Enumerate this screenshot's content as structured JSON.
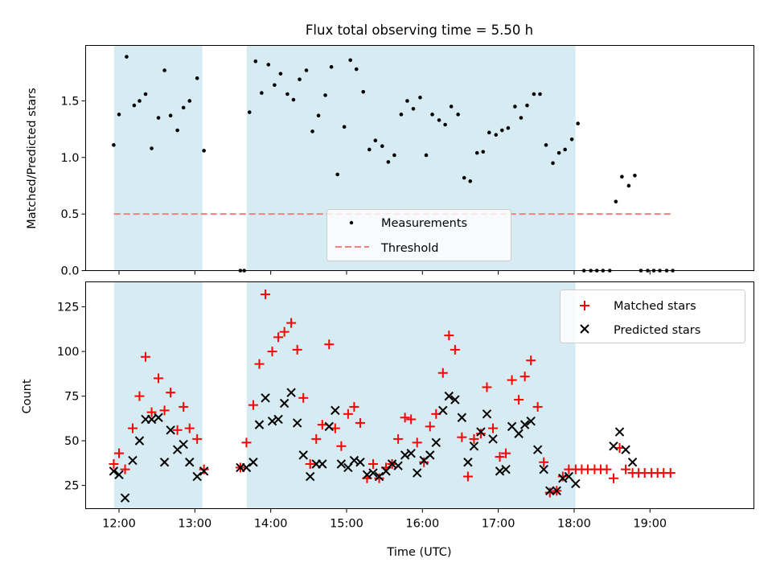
{
  "figure": {
    "title": "Flux total observing time = 5.50 h",
    "xlabel": "Time (UTC)"
  },
  "colors": {
    "band": "#add8e6",
    "measurement": "#000000",
    "threshold": "#f08080",
    "matched": "#ff0000",
    "predicted": "#000000"
  },
  "chart_data": [
    {
      "type": "scatter",
      "ylabel": "Matched/Predicted stars",
      "xlim": [
        11.56,
        20.37
      ],
      "ylim": [
        0,
        1.99
      ],
      "yticks": [
        0.0,
        0.5,
        1.0,
        1.5
      ],
      "ytick_labels": [
        "0.0",
        "0.5",
        "1.0",
        "1.5"
      ],
      "xticks": [
        12,
        13,
        14,
        15,
        16,
        17,
        18,
        19
      ],
      "xtick_labels": [],
      "observing_windows": [
        [
          11.933,
          13.1
        ],
        [
          13.683,
          18.017
        ]
      ],
      "legend": {
        "position": "lower-center",
        "entries": [
          "Measurements",
          "Threshold"
        ]
      },
      "threshold": {
        "name": "Threshold",
        "value": 0.5,
        "x_range": [
          11.933,
          19.3
        ]
      },
      "series": [
        {
          "name": "Measurements",
          "x": [
            11.93,
            12.0,
            12.1,
            12.2,
            12.27,
            12.35,
            12.43,
            12.52,
            12.6,
            12.68,
            12.77,
            12.85,
            12.93,
            13.03,
            13.12,
            13.6,
            13.65,
            13.72,
            13.8,
            13.88,
            13.97,
            14.05,
            14.13,
            14.22,
            14.3,
            14.38,
            14.47,
            14.55,
            14.63,
            14.72,
            14.8,
            14.88,
            14.97,
            15.05,
            15.13,
            15.22,
            15.3,
            15.38,
            15.47,
            15.55,
            15.63,
            15.72,
            15.8,
            15.88,
            15.97,
            16.05,
            16.13,
            16.22,
            16.3,
            16.38,
            16.47,
            16.55,
            16.63,
            16.72,
            16.8,
            16.88,
            16.97,
            17.05,
            17.13,
            17.22,
            17.3,
            17.38,
            17.47,
            17.55,
            17.63,
            17.72,
            17.8,
            17.88,
            17.97,
            18.05,
            18.13,
            18.22,
            18.3,
            18.38,
            18.47,
            18.55,
            18.63,
            18.72,
            18.8,
            18.88,
            18.97,
            19.05,
            19.13,
            19.22,
            19.3
          ],
          "y": [
            1.11,
            1.38,
            1.89,
            1.46,
            1.5,
            1.56,
            1.08,
            1.35,
            1.77,
            1.37,
            1.24,
            1.44,
            1.5,
            1.7,
            1.06,
            0.0,
            0.0,
            1.4,
            1.85,
            1.57,
            1.82,
            1.64,
            1.74,
            1.56,
            1.51,
            1.69,
            1.77,
            1.23,
            1.37,
            1.55,
            1.8,
            0.85,
            1.27,
            1.86,
            1.78,
            1.58,
            1.07,
            1.15,
            1.1,
            0.96,
            1.02,
            1.38,
            1.5,
            1.43,
            1.53,
            1.02,
            1.38,
            1.33,
            1.29,
            1.45,
            1.38,
            0.82,
            0.79,
            1.04,
            1.05,
            1.22,
            1.2,
            1.24,
            1.26,
            1.45,
            1.35,
            1.46,
            1.56,
            1.56,
            1.11,
            0.95,
            1.04,
            1.07,
            1.16,
            1.3,
            0.0,
            0.0,
            0.0,
            0.0,
            0.0,
            0.61,
            0.83,
            0.75,
            0.84,
            0.0,
            0.0,
            0.0,
            0.0,
            0.0,
            0.0
          ]
        }
      ]
    },
    {
      "type": "scatter",
      "ylabel": "Count",
      "xlim": [
        11.56,
        20.37
      ],
      "ylim": [
        12,
        139
      ],
      "yticks": [
        25,
        50,
        75,
        100,
        125
      ],
      "ytick_labels": [
        "25",
        "50",
        "75",
        "100",
        "125"
      ],
      "xticks": [
        12,
        13,
        14,
        15,
        16,
        17,
        18,
        19
      ],
      "xtick_labels": [
        "12:00",
        "13:00",
        "14:00",
        "15:00",
        "16:00",
        "17:00",
        "18:00",
        "19:00"
      ],
      "observing_windows": [
        [
          11.933,
          13.1
        ],
        [
          13.683,
          18.017
        ]
      ],
      "legend": {
        "position": "top-right",
        "entries": [
          "Matched stars",
          "Predicted stars"
        ]
      },
      "series": [
        {
          "name": "Matched stars",
          "marker": "plus",
          "x": [
            11.93,
            12.0,
            12.08,
            12.18,
            12.27,
            12.35,
            12.43,
            12.52,
            12.6,
            12.68,
            12.77,
            12.85,
            12.93,
            13.03,
            13.12,
            13.6,
            13.68,
            13.77,
            13.85,
            13.93,
            14.02,
            14.1,
            14.18,
            14.27,
            14.35,
            14.43,
            14.52,
            14.6,
            14.68,
            14.77,
            14.85,
            14.93,
            15.02,
            15.1,
            15.18,
            15.27,
            15.35,
            15.43,
            15.52,
            15.6,
            15.68,
            15.77,
            15.85,
            15.93,
            16.02,
            16.1,
            16.18,
            16.27,
            16.35,
            16.43,
            16.52,
            16.6,
            16.68,
            16.77,
            16.85,
            16.93,
            17.02,
            17.1,
            17.18,
            17.27,
            17.35,
            17.43,
            17.52,
            17.6,
            17.68,
            17.77,
            17.85,
            17.93,
            18.02,
            18.1,
            18.18,
            18.27,
            18.35,
            18.43,
            18.52,
            18.6,
            18.68,
            18.77,
            18.85,
            18.93,
            19.02,
            19.1,
            19.18,
            19.27
          ],
          "y": [
            37,
            43,
            34,
            57,
            75,
            97,
            66,
            85,
            67,
            77,
            56,
            69,
            57,
            51,
            34,
            35,
            49,
            70,
            93,
            132,
            100,
            108,
            111,
            116,
            101,
            74,
            37,
            51,
            59,
            104,
            57,
            47,
            65,
            69,
            60,
            29,
            37,
            29,
            35,
            37,
            51,
            63,
            62,
            49,
            38,
            58,
            65,
            88,
            109,
            101,
            52,
            30,
            51,
            54,
            80,
            57,
            41,
            43,
            84,
            73,
            86,
            95,
            69,
            38,
            21,
            22,
            30,
            34,
            34,
            34,
            34,
            34,
            34,
            34,
            29,
            46,
            34,
            32,
            32,
            32,
            32,
            32,
            32,
            32
          ]
        },
        {
          "name": "Predicted stars",
          "marker": "x",
          "x": [
            11.93,
            12.0,
            12.08,
            12.18,
            12.27,
            12.35,
            12.43,
            12.52,
            12.6,
            12.68,
            12.77,
            12.85,
            12.93,
            13.03,
            13.12,
            13.6,
            13.68,
            13.77,
            13.85,
            13.93,
            14.02,
            14.1,
            14.18,
            14.27,
            14.35,
            14.43,
            14.52,
            14.6,
            14.68,
            14.77,
            14.85,
            14.93,
            15.02,
            15.1,
            15.18,
            15.27,
            15.35,
            15.43,
            15.52,
            15.6,
            15.68,
            15.77,
            15.85,
            15.93,
            16.02,
            16.1,
            16.18,
            16.27,
            16.35,
            16.43,
            16.52,
            16.6,
            16.68,
            16.77,
            16.85,
            16.93,
            17.02,
            17.1,
            17.18,
            17.27,
            17.35,
            17.43,
            17.52,
            17.6,
            17.68,
            17.77,
            17.85,
            17.93,
            18.02,
            18.52,
            18.6,
            18.68,
            18.77
          ],
          "y": [
            33,
            31,
            18,
            39,
            50,
            62,
            62,
            63,
            38,
            56,
            45,
            48,
            38,
            30,
            33,
            35,
            35,
            38,
            59,
            74,
            61,
            62,
            71,
            77,
            60,
            42,
            30,
            37,
            37,
            58,
            67,
            37,
            35,
            39,
            38,
            31,
            32,
            30,
            33,
            37,
            36,
            42,
            43,
            32,
            39,
            42,
            49,
            67,
            75,
            73,
            63,
            38,
            47,
            55,
            65,
            51,
            33,
            34,
            58,
            54,
            59,
            61,
            45,
            34,
            22,
            22,
            29,
            30,
            26,
            47,
            55,
            45,
            38
          ]
        }
      ]
    }
  ]
}
